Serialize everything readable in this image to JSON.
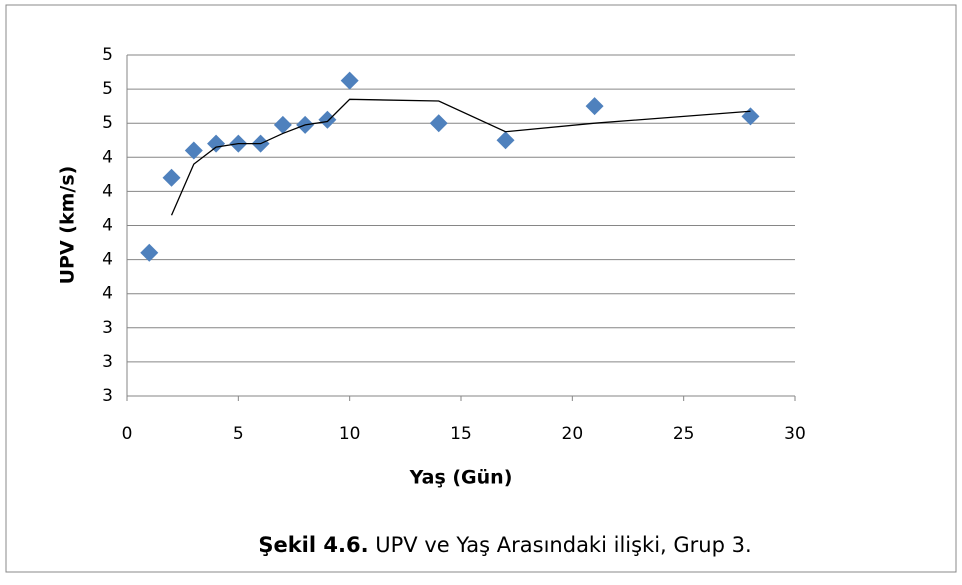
{
  "chart_data": {
    "type": "scatter",
    "xlabel": "Yaş (Gün)",
    "ylabel": "UPV (km/s)",
    "caption_bold": "Şekil 4.6.",
    "caption": "UPV ve Yaş Arasındaki ilişki, Grup 3.",
    "xlim": [
      0,
      30
    ],
    "xticks": [
      0,
      5,
      10,
      15,
      20,
      25,
      30
    ],
    "ylim": [
      3,
      5
    ],
    "yticks": [
      {
        "value": 3.0,
        "label": "3"
      },
      {
        "value": 3.2,
        "label": "3"
      },
      {
        "value": 3.4,
        "label": "3"
      },
      {
        "value": 3.6,
        "label": "4"
      },
      {
        "value": 3.8,
        "label": "4"
      },
      {
        "value": 4.0,
        "label": "4"
      },
      {
        "value": 4.2,
        "label": "4"
      },
      {
        "value": 4.4,
        "label": "4"
      },
      {
        "value": 4.6,
        "label": "5"
      },
      {
        "value": 4.8,
        "label": "5"
      },
      {
        "value": 5.0,
        "label": "5"
      }
    ],
    "grid": true,
    "x": [
      1,
      2,
      3,
      4,
      5,
      6,
      7,
      8,
      9,
      10,
      14,
      17,
      21,
      28
    ],
    "series": [
      {
        "color": "#4f81bd",
        "marker": "diamond",
        "values": [
          3.84,
          4.28,
          4.44,
          4.48,
          4.48,
          4.48,
          4.59,
          4.59,
          4.62,
          4.85,
          4.6,
          4.5,
          4.7,
          4.64
        ]
      },
      {
        "color": "#000000",
        "marker": "line",
        "values": [
          null,
          4.06,
          4.36,
          4.46,
          4.48,
          4.48,
          4.54,
          4.59,
          4.61,
          4.74,
          4.73,
          4.55,
          4.6,
          4.67
        ]
      }
    ]
  }
}
